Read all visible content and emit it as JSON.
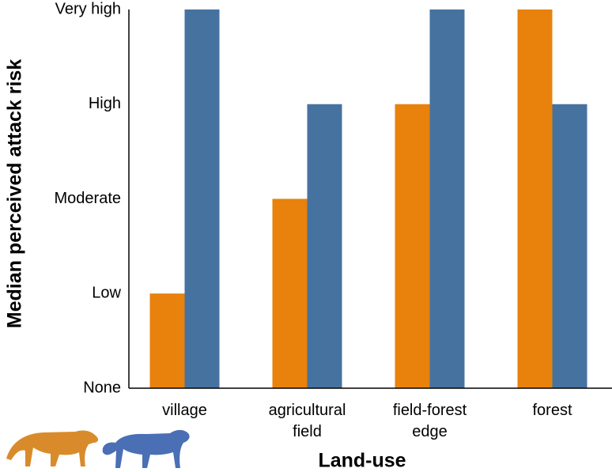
{
  "chart_data": {
    "type": "bar",
    "categories": [
      "village",
      "agricultural field",
      "field-forest edge",
      "forest"
    ],
    "series": [
      {
        "color": "#e8820c",
        "values": [
          1,
          2,
          3,
          4
        ]
      },
      {
        "color": "#4672a0",
        "values": [
          4,
          3,
          4,
          3
        ]
      }
    ],
    "ylim": [
      0,
      4
    ],
    "yticks": [
      {
        "value": 0,
        "label": "None"
      },
      {
        "value": 1,
        "label": "Low"
      },
      {
        "value": 2,
        "label": "Moderate"
      },
      {
        "value": 3,
        "label": "High"
      },
      {
        "value": 4,
        "label": "Very high"
      }
    ],
    "ylabel": "Median perceived attack risk",
    "xlabel": "Land-use"
  }
}
